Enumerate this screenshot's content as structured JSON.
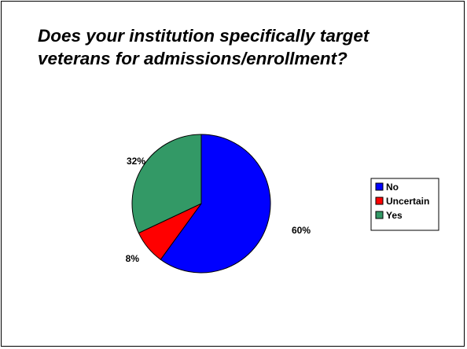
{
  "slide": {
    "title": "Does your institution specifically target\nveterans for admissions/enrollment?"
  },
  "chart_data": {
    "type": "pie",
    "title": "Does your institution specifically target veterans for admissions/enrollment?",
    "slices": [
      {
        "label": "No",
        "value": 60,
        "data_label": "60%",
        "color": "#0000ff"
      },
      {
        "label": "Uncertain",
        "value": 8,
        "data_label": "8%",
        "color": "#ff0000"
      },
      {
        "label": "Yes",
        "value": 32,
        "data_label": "32%",
        "color": "#339966"
      }
    ],
    "start": "12 o'clock",
    "direction": "clockwise",
    "legend": {
      "placement": "right",
      "entries": [
        "No",
        "Uncertain",
        "Yes"
      ]
    }
  }
}
